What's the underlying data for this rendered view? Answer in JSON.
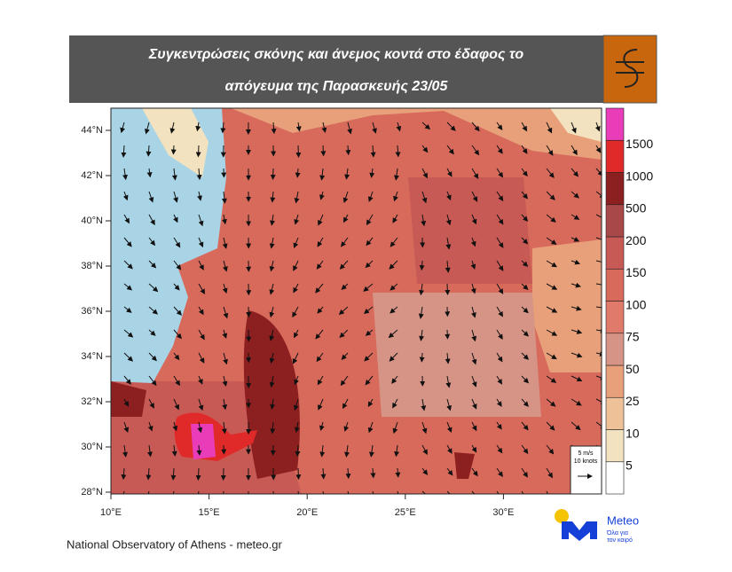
{
  "header": {
    "title_lines": [
      "Συγκεντρώσεις σκόνης και άνεμος κοντά στο έδαφος το",
      "απόγευμα της Παρασκευής 23/05"
    ]
  },
  "map": {
    "lat_labels": [
      "44°N",
      "42°N",
      "40°N",
      "38°N",
      "36°N",
      "34°N",
      "32°N",
      "30°N",
      "28°N"
    ],
    "lon_labels": [
      "10°E",
      "15°E",
      "20°E",
      "25°E",
      "30°E"
    ],
    "wind_legend": [
      "5 m/s",
      "10 knots"
    ]
  },
  "colorbar": {
    "levels": [
      {
        "label": "5",
        "color": "#ffffff"
      },
      {
        "label": "10",
        "color": "#f2e2bf"
      },
      {
        "label": "25",
        "color": "#eec199"
      },
      {
        "label": "50",
        "color": "#e8a07a"
      },
      {
        "label": "75",
        "color": "#d69487"
      },
      {
        "label": "100",
        "color": "#e07a6a"
      },
      {
        "label": "150",
        "color": "#d86a5c"
      },
      {
        "label": "200",
        "color": "#c85a55"
      },
      {
        "label": "500",
        "color": "#a84848"
      },
      {
        "label": "1000",
        "color": "#8c1f1f"
      },
      {
        "label": "1500",
        "color": "#e02a2a"
      },
      {
        "label": null,
        "color": "#e83cb8"
      }
    ]
  },
  "footer": {
    "credit": "National Observatory of Athens - meteo.gr",
    "logo_name": "Meteo",
    "logo_tagline": [
      "Όλα για",
      "τον καιρό"
    ]
  }
}
